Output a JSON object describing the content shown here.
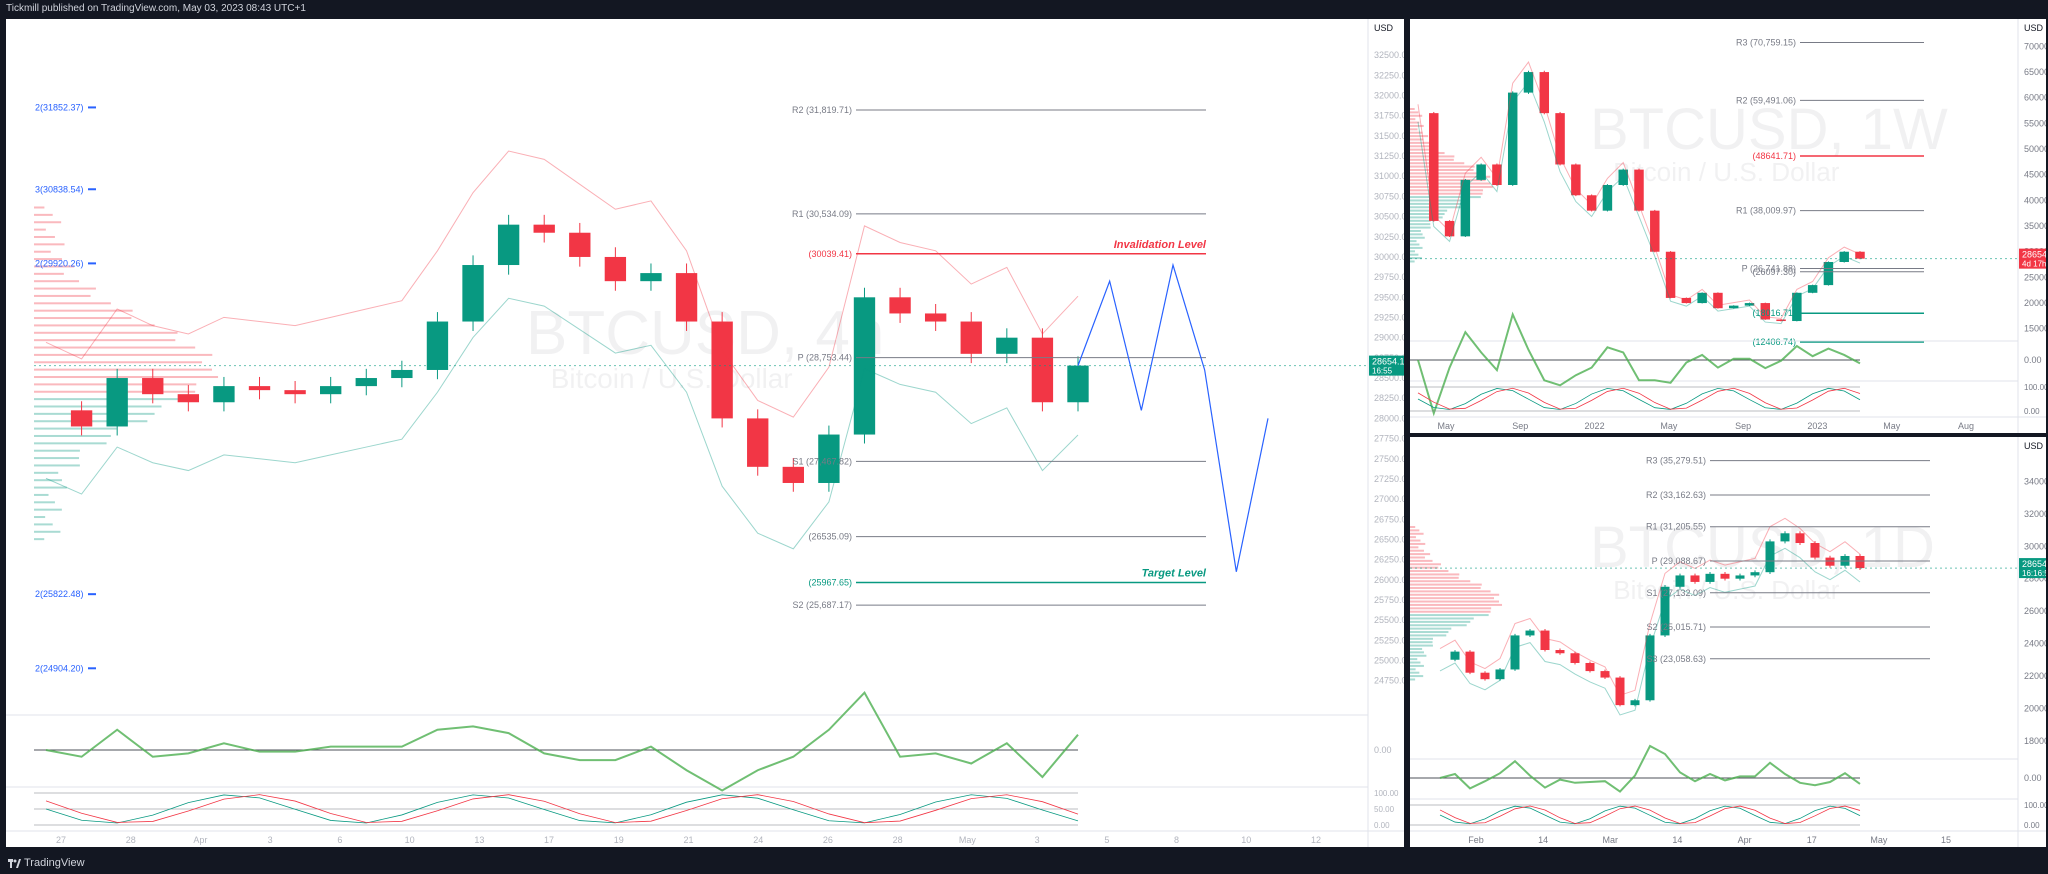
{
  "header": {
    "publisher_line": "Tickmill published on TradingView.com, May 03, 2023 08:43 UTC+1"
  },
  "footer": {
    "brand": "TradingView"
  },
  "chart_data": [
    {
      "type": "line",
      "id": "main",
      "symbol_watermark": "BTCUSD, 4h",
      "name_watermark": "Bitcoin / U.S. Dollar",
      "axis_currency": "USD",
      "ylim": [
        24400,
        32700
      ],
      "y_ticks": [
        32500,
        32250,
        32000,
        31750,
        31500,
        31250,
        31000,
        30750,
        30500,
        30250,
        30000,
        29750,
        29500,
        29250,
        29000,
        28750,
        28500,
        28250,
        28000,
        27750,
        27500,
        27250,
        27000,
        26750,
        26500,
        26250,
        26000,
        25750,
        25500,
        25250,
        25000,
        24750
      ],
      "x_ticks": [
        "27",
        "28",
        "Apr",
        "3",
        "6",
        "10",
        "13",
        "17",
        "19",
        "21",
        "24",
        "26",
        "28",
        "May",
        "3",
        "5",
        "8",
        "10",
        "12"
      ],
      "price_label": {
        "value": "28654.19",
        "countdown": "16:55"
      },
      "close_series": [
        28100,
        27900,
        28500,
        28300,
        28200,
        28400,
        28350,
        28300,
        28400,
        28500,
        28600,
        29200,
        29900,
        30400,
        30300,
        30000,
        29700,
        29800,
        29200,
        28000,
        27400,
        27200,
        27800,
        29500,
        29300,
        29200,
        28800,
        29000,
        28200,
        28654
      ],
      "levels_right": [
        {
          "label": "R2 (31,819.71)",
          "value": 31819.71
        },
        {
          "label": "R1 (30,534.09)",
          "value": 30534.09
        },
        {
          "label": "(30039.41)",
          "value": 30039.41
        },
        {
          "label": "P (28,753.44)",
          "value": 28753.44
        },
        {
          "label": "S1 (27,467.82)",
          "value": 27467.82
        },
        {
          "label": "(26535.09)",
          "value": 26535.09
        },
        {
          "label": "(25967.65)",
          "value": 25967.65
        },
        {
          "label": "S2 (25,687.17)",
          "value": 25687.17
        }
      ],
      "levels_left": [
        {
          "label": "2(31852.37)",
          "value": 31852.37
        },
        {
          "label": "3(30838.54)",
          "value": 30838.54
        },
        {
          "label": "2(29920.26)",
          "value": 29920.26
        },
        {
          "label": "2(25822.48)",
          "value": 25822.48
        },
        {
          "label": "2(24904.20)",
          "value": 24904.2
        }
      ],
      "annotations": [
        {
          "text": "Invalidation Level",
          "value": 30039.41
        },
        {
          "text": "Target Level",
          "value": 25967.65
        }
      ],
      "projection_path": [
        28654,
        29700,
        28100,
        29900,
        28600,
        26100,
        28000
      ],
      "oscillator_ticks": [
        "0.00"
      ],
      "stoch_ticks": [
        "100.00",
        "50.00",
        "0.00"
      ]
    },
    {
      "type": "line",
      "id": "weekly",
      "symbol_watermark": "BTCUSD, 1W",
      "name_watermark": "Bitcoin / U.S. Dollar",
      "axis_currency": "USD",
      "ylim": [
        13000,
        73000
      ],
      "y_ticks": [
        70000,
        65000,
        60000,
        55000,
        50000,
        45000,
        40000,
        35000,
        30000,
        25000,
        20000,
        15000
      ],
      "x_ticks": [
        "May",
        "Sep",
        "2022",
        "May",
        "Sep",
        "2023",
        "May",
        "Aug"
      ],
      "price_label": {
        "value": "28654.76",
        "countdown": "4d 17h"
      },
      "close_series": [
        57000,
        36000,
        33000,
        44000,
        47000,
        43000,
        61000,
        65000,
        57000,
        47000,
        41000,
        38000,
        43000,
        46000,
        38000,
        30000,
        21000,
        20000,
        22000,
        19000,
        19500,
        20000,
        16800,
        16500,
        22000,
        23500,
        28000,
        30000,
        28654
      ],
      "levels": [
        {
          "label": "R3 (70,759.15)",
          "value": 70759.15
        },
        {
          "label": "R2 (59,491.06)",
          "value": 59491.06
        },
        {
          "label": "(48641.71)",
          "value": 48641.71
        },
        {
          "label": "R1 (38,009.97)",
          "value": 38009.97
        },
        {
          "label": "P (26,741.88)",
          "value": 26741.88
        },
        {
          "label": "(26097.30)",
          "value": 26097.3
        },
        {
          "label": "(18016.71)",
          "value": 18016.71
        },
        {
          "label": "(12406.74)",
          "value": 12406.74
        }
      ],
      "oscillator_ticks": [
        "0.00"
      ],
      "stoch_ticks": [
        "100.00",
        "0.00"
      ]
    },
    {
      "type": "line",
      "id": "daily",
      "symbol_watermark": "BTCUSD, 1D",
      "name_watermark": "Bitcoin / U.S. Dollar",
      "axis_currency": "USD",
      "ylim": [
        17000,
        36000
      ],
      "y_ticks": [
        34000,
        32000,
        30000,
        28000,
        26000,
        24000,
        22000,
        20000,
        18000
      ],
      "x_ticks": [
        "Feb",
        "14",
        "Mar",
        "14",
        "Apr",
        "17",
        "May",
        "15"
      ],
      "price_label": {
        "value": "28654.76",
        "countdown": "16:16:55"
      },
      "close_series": [
        23000,
        23500,
        22200,
        21800,
        22400,
        24500,
        24800,
        23600,
        23400,
        22800,
        22300,
        21900,
        20200,
        20500,
        24500,
        27500,
        28200,
        27800,
        28300,
        28000,
        28200,
        28400,
        30300,
        30800,
        30200,
        29300,
        28800,
        29400,
        28654
      ],
      "levels": [
        {
          "label": "R3 (35,279.51)",
          "value": 35279.51
        },
        {
          "label": "R2 (33,162.63)",
          "value": 33162.63
        },
        {
          "label": "R1 (31,205.55)",
          "value": 31205.55
        },
        {
          "label": "P (29,088.67)",
          "value": 29088.67
        },
        {
          "label": "S1 (27,132.09)",
          "value": 27132.09
        },
        {
          "label": "S2 (25,015.71)",
          "value": 25015.71
        },
        {
          "label": "S3 (23,058.63)",
          "value": 23058.63
        }
      ],
      "oscillator_ticks": [
        "0.00"
      ],
      "stoch_ticks": [
        "100.00",
        "0.00"
      ]
    }
  ]
}
